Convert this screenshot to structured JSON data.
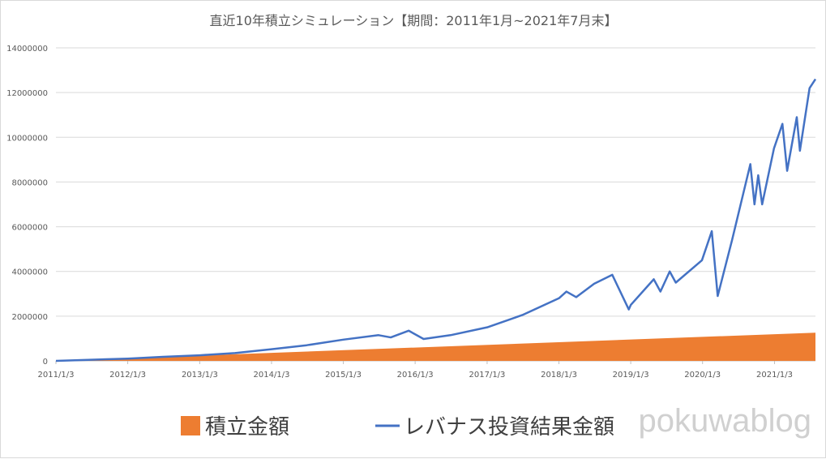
{
  "chart_data": {
    "type": "area",
    "title": "直近10年積立シミュレーション【期間：2011年1月~2021年7月末】",
    "xlabel": "",
    "ylabel": "",
    "ylim": [
      0,
      14000000
    ],
    "y_ticks": [
      "0",
      "2000000",
      "4000000",
      "6000000",
      "8000000",
      "10000000",
      "12000000",
      "14000000"
    ],
    "x_ticks": [
      "2011/1/3",
      "2012/1/3",
      "2013/1/3",
      "2014/1/3",
      "2015/1/3",
      "2016/1/3",
      "2017/1/3",
      "2018/1/3",
      "2019/1/3",
      "2020/1/3",
      "2021/1/3"
    ],
    "grid": true,
    "legend_position": "bottom",
    "x_range": [
      "2011/1/3",
      "2021/7/30"
    ],
    "series": [
      {
        "name": "積立金額",
        "kind": "area",
        "color": "#ED7D31",
        "points": [
          [
            "2011/1/3",
            0
          ],
          [
            "2021/7/30",
            1260000
          ]
        ]
      },
      {
        "name": "レバナス投資結果金額",
        "kind": "line",
        "color": "#4472C4",
        "points": [
          [
            "2011/1/3",
            0
          ],
          [
            "2011/7/1",
            50000
          ],
          [
            "2012/1/3",
            100000
          ],
          [
            "2012/7/1",
            180000
          ],
          [
            "2013/1/3",
            250000
          ],
          [
            "2013/7/1",
            350000
          ],
          [
            "2014/1/3",
            520000
          ],
          [
            "2014/7/1",
            700000
          ],
          [
            "2015/1/3",
            950000
          ],
          [
            "2015/7/1",
            1150000
          ],
          [
            "2015/9/1",
            1050000
          ],
          [
            "2015/12/1",
            1350000
          ],
          [
            "2016/2/15",
            980000
          ],
          [
            "2016/7/1",
            1150000
          ],
          [
            "2017/1/3",
            1500000
          ],
          [
            "2017/7/1",
            2050000
          ],
          [
            "2018/1/3",
            2800000
          ],
          [
            "2018/2/10",
            3100000
          ],
          [
            "2018/4/1",
            2850000
          ],
          [
            "2018/7/1",
            3450000
          ],
          [
            "2018/10/1",
            3850000
          ],
          [
            "2018/12/24",
            2300000
          ],
          [
            "2019/1/3",
            2500000
          ],
          [
            "2019/4/30",
            3650000
          ],
          [
            "2019/6/3",
            3100000
          ],
          [
            "2019/7/20",
            4000000
          ],
          [
            "2019/8/20",
            3500000
          ],
          [
            "2019/12/31",
            4500000
          ],
          [
            "2020/2/19",
            5800000
          ],
          [
            "2020/3/20",
            2900000
          ],
          [
            "2020/6/1",
            5400000
          ],
          [
            "2020/9/2",
            8800000
          ],
          [
            "2020/9/23",
            7000000
          ],
          [
            "2020/10/12",
            8300000
          ],
          [
            "2020/11/1",
            7000000
          ],
          [
            "2020/12/31",
            9500000
          ],
          [
            "2021/2/12",
            10600000
          ],
          [
            "2021/3/8",
            8500000
          ],
          [
            "2021/4/26",
            10900000
          ],
          [
            "2021/5/12",
            9400000
          ],
          [
            "2021/6/30",
            12200000
          ],
          [
            "2021/7/30",
            12600000
          ]
        ]
      }
    ]
  },
  "watermark": "pokuwablog"
}
